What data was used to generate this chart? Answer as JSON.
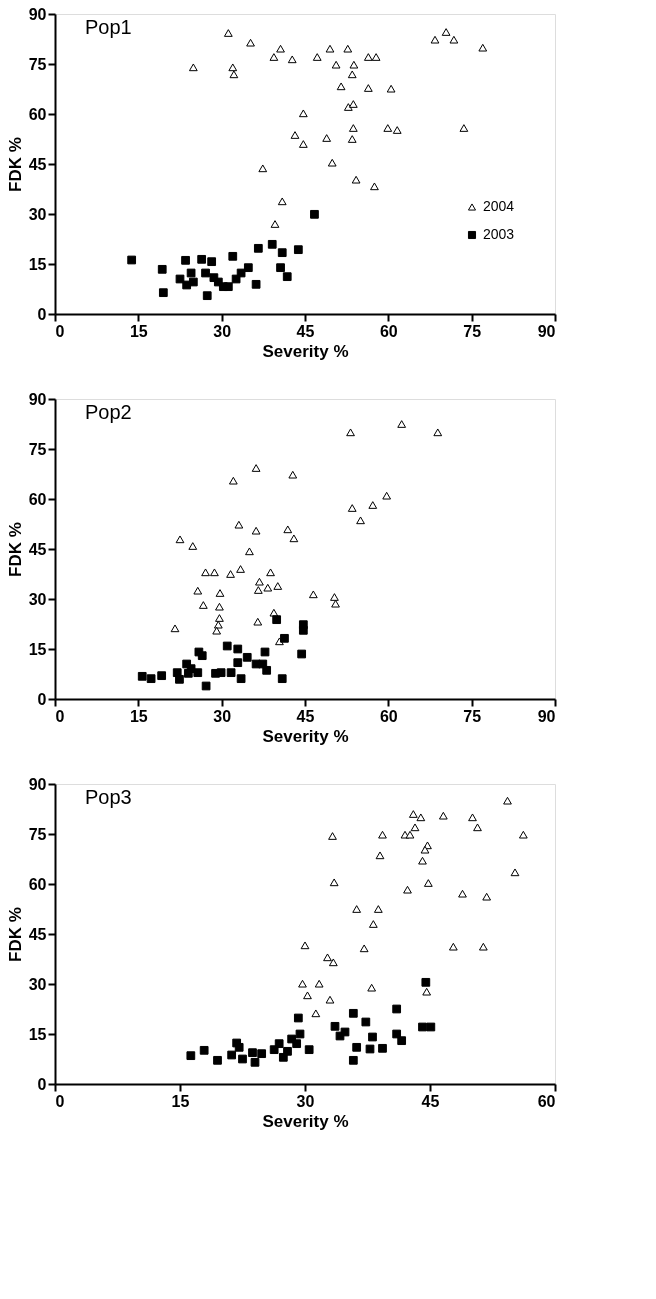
{
  "chart_data": [
    {
      "type": "scatter",
      "title": "Pop1",
      "xlabel": "Severity %",
      "ylabel": "FDK %",
      "xlim": [
        0,
        90
      ],
      "xticks": [
        0,
        15,
        30,
        45,
        60,
        75,
        90
      ],
      "ylim": [
        0,
        90
      ],
      "yticks": [
        0,
        15,
        30,
        45,
        60,
        75,
        90
      ],
      "grid": false,
      "legend": "right",
      "series": [
        {
          "name": "2004",
          "color": "#000000",
          "marker": "triangle",
          "x": [
            31.2,
            35.2,
            40.6,
            39.4,
            42.7,
            24.9,
            32.0,
            32.2,
            44.7,
            43.2,
            44.7,
            37.4,
            40.9,
            39.6,
            49.5,
            52.7,
            47.2,
            50.6,
            53.8,
            53.5,
            56.4,
            57.8,
            51.5,
            56.4,
            60.5,
            52.8,
            53.7,
            53.7,
            59.9,
            61.6,
            73.6,
            48.9,
            53.5,
            49.9,
            54.2,
            57.5,
            68.4,
            70.4,
            71.8,
            77.0
          ],
          "values": [
            84.3,
            81.4,
            79.6,
            77.1,
            76.4,
            74.0,
            74.0,
            71.9,
            60.2,
            53.7,
            51.0,
            43.7,
            33.8,
            27.0,
            79.6,
            79.6,
            77.1,
            74.8,
            74.8,
            71.9,
            77.1,
            77.1,
            68.3,
            67.8,
            67.6,
            62.1,
            63.0,
            55.8,
            55.8,
            55.2,
            55.8,
            52.8,
            52.5,
            45.4,
            40.3,
            38.3,
            82.3,
            84.6,
            82.3,
            79.9
          ]
        },
        {
          "name": "2003",
          "color": "#000000",
          "marker": "square",
          "x": [
            13.8,
            19.3,
            19.5,
            22.5,
            23.5,
            23.7,
            24.5,
            24.9,
            26.4,
            27.1,
            27.4,
            28.2,
            28.6,
            29.4,
            30.3,
            31.2,
            32.0,
            32.6,
            33.5,
            34.8,
            36.2,
            36.6,
            39.1,
            40.9,
            40.6,
            41.8,
            43.8,
            46.7
          ],
          "values": [
            16.2,
            13.4,
            6.4,
            10.5,
            16.1,
            8.7,
            12.3,
            9.6,
            16.4,
            12.3,
            5.5,
            15.7,
            10.9,
            9.6,
            8.2,
            8.2,
            17.3,
            10.5,
            12.3,
            13.9,
            8.9,
            19.7,
            20.9,
            18.4,
            13.9,
            11.2,
            19.3,
            29.9
          ]
        }
      ]
    },
    {
      "type": "scatter",
      "title": "Pop2",
      "xlabel": "Severity %",
      "ylabel": "FDK %",
      "xlim": [
        0,
        90
      ],
      "xticks": [
        0,
        15,
        30,
        45,
        60,
        75,
        90
      ],
      "ylim": [
        0,
        90
      ],
      "yticks": [
        0,
        15,
        30,
        45,
        60,
        75,
        90
      ],
      "grid": false,
      "legend": "right",
      "series": [
        {
          "name": "2004",
          "color": "#000000",
          "marker": "triangle",
          "x": [
            36.2,
            32.1,
            42.8,
            33.1,
            36.2,
            41.9,
            43.0,
            22.5,
            24.8,
            35.0,
            27.1,
            28.7,
            31.6,
            33.4,
            38.8,
            36.8,
            36.6,
            38.3,
            40.1,
            25.7,
            29.7,
            26.7,
            29.6,
            29.6,
            29.4,
            29.1,
            21.6,
            36.5,
            39.4,
            40.4,
            46.5,
            53.2,
            62.4,
            68.9,
            59.7,
            57.2,
            53.5,
            55.0,
            50.3,
            50.5
          ],
          "values": [
            69.3,
            65.5,
            67.3,
            52.3,
            50.5,
            50.9,
            48.2,
            47.9,
            45.9,
            44.3,
            38.0,
            38.0,
            37.5,
            39.0,
            38.0,
            35.2,
            32.7,
            33.4,
            33.9,
            32.5,
            31.8,
            28.2,
            27.7,
            24.3,
            22.3,
            20.5,
            21.2,
            23.2,
            25.9,
            17.3,
            31.4,
            80.0,
            82.5,
            80.0,
            61.0,
            58.2,
            57.3,
            53.6,
            30.6,
            28.6
          ]
        },
        {
          "name": "2003",
          "color": "#000000",
          "marker": "square",
          "x": [
            15.7,
            17.3,
            19.2,
            22.0,
            22.4,
            23.7,
            24.0,
            24.5,
            25.7,
            25.9,
            26.5,
            27.2,
            28.9,
            29.9,
            31.0,
            31.7,
            32.9,
            32.9,
            33.5,
            34.6,
            36.2,
            37.4,
            37.8,
            38.1,
            39.9,
            40.9,
            41.3,
            44.4,
            44.7,
            44.7
          ],
          "values": [
            6.8,
            6.1,
            7.0,
            7.9,
            5.9,
            10.5,
            7.7,
            9.1,
            7.9,
            14.1,
            13.0,
            3.9,
            7.7,
            7.9,
            15.9,
            7.9,
            15.0,
            10.9,
            6.1,
            12.5,
            10.5,
            10.5,
            14.1,
            8.6,
            23.8,
            6.1,
            18.2,
            13.5,
            22.3,
            20.6
          ]
        }
      ]
    },
    {
      "type": "scatter",
      "title": "Pop3",
      "xlabel": "Severity %",
      "ylabel": "FDK %",
      "xlim": [
        0,
        60
      ],
      "xticks": [
        0,
        15,
        30,
        45,
        60
      ],
      "ylim": [
        0,
        90
      ],
      "yticks": [
        0,
        15,
        30,
        45,
        60,
        75,
        90
      ],
      "grid": false,
      "legend": "right",
      "series": [
        {
          "name": "2004",
          "color": "#000000",
          "marker": "triangle",
          "x": [
            43.0,
            43.9,
            43.2,
            46.6,
            50.1,
            50.7,
            54.3,
            33.3,
            39.3,
            42.0,
            42.6,
            56.2,
            44.7,
            44.4,
            39.0,
            44.1,
            55.2,
            33.5,
            44.8,
            42.3,
            48.9,
            51.8,
            36.2,
            38.8,
            38.2,
            30.0,
            37.1,
            47.8,
            51.4,
            32.7,
            33.4,
            29.7,
            31.7,
            30.3,
            38.0,
            33.0,
            44.6,
            31.3
          ],
          "values": [
            81.0,
            80.0,
            77.0,
            80.5,
            80.0,
            77.0,
            85.0,
            74.4,
            74.8,
            74.8,
            74.8,
            74.8,
            71.6,
            70.3,
            68.6,
            67.0,
            63.5,
            60.5,
            60.3,
            58.3,
            57.1,
            56.2,
            52.5,
            52.5,
            48.0,
            41.6,
            40.7,
            41.2,
            41.2,
            38.0,
            36.5,
            30.1,
            30.1,
            26.6,
            28.9,
            25.3,
            27.7,
            21.2
          ]
        },
        {
          "name": "2003",
          "color": "#000000",
          "marker": "square",
          "x": [
            16.3,
            17.9,
            19.5,
            21.2,
            21.8,
            22.1,
            22.5,
            23.7,
            24.0,
            24.8,
            26.3,
            26.9,
            27.4,
            27.9,
            28.4,
            29.0,
            29.2,
            29.4,
            30.5,
            33.6,
            34.2,
            34.8,
            35.8,
            35.8,
            36.2,
            37.3,
            37.8,
            38.1,
            39.3,
            41.0,
            41.0,
            41.6,
            44.1,
            44.5,
            45.1
          ],
          "values": [
            8.5,
            10.1,
            7.1,
            8.7,
            12.3,
            11.0,
            7.5,
            9.4,
            6.5,
            9.1,
            10.3,
            12.1,
            8.0,
            9.8,
            13.5,
            12.1,
            19.8,
            15.0,
            10.3,
            17.3,
            14.4,
            15.6,
            21.2,
            7.1,
            11.0,
            18.6,
            10.5,
            14.1,
            10.7,
            22.5,
            15.0,
            13.0,
            17.1,
            30.5,
            17.1
          ]
        }
      ]
    }
  ]
}
